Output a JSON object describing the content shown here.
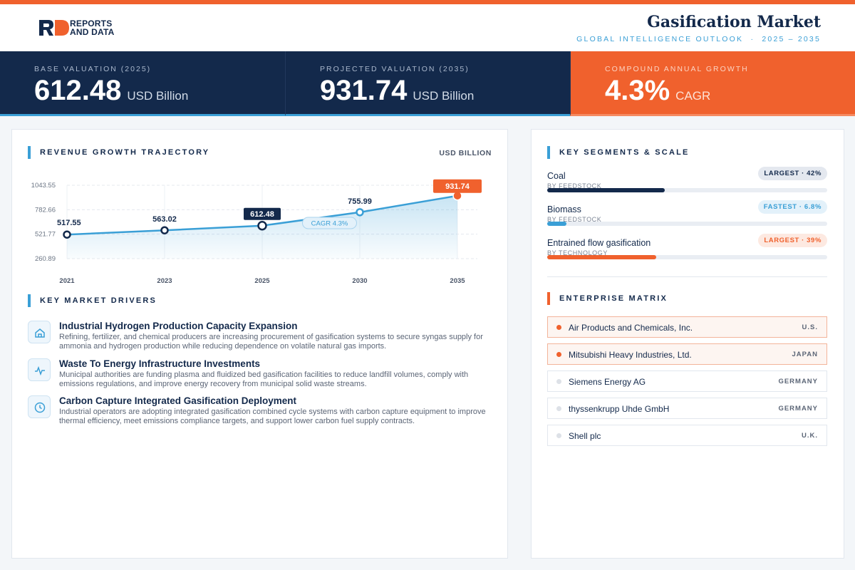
{
  "header": {
    "logo": [
      "REPORTS",
      "AND DATA"
    ],
    "title": "Gasification Market",
    "subtitle": "GLOBAL INTELLIGENCE OUTLOOK  ·  2025 – 2035"
  },
  "kpis": [
    {
      "label": "BASE VALUATION (2025)",
      "value": 612.48,
      "unit": "USD Billion"
    },
    {
      "label": "PROJECTED VALUATION (2035)",
      "value": 931.74,
      "unit": "USD Billion"
    },
    {
      "label": "COMPOUND ANNUAL GROWTH",
      "value": "4.3%",
      "unit": "CAGR"
    }
  ],
  "growth": {
    "title": "REVENUE GROWTH TRAJECTORY",
    "unit": "USD BILLION"
  },
  "chart_data": {
    "type": "line",
    "categories": [
      "2021",
      "2023",
      "2025",
      "2030",
      "2035"
    ],
    "values": [
      517.55,
      563.02,
      612.48,
      755.99,
      931.74
    ],
    "color": "#3a9fd6",
    "ylim": [
      260.89,
      1043.55
    ],
    "yticks": [
      260.89,
      521.77,
      782.66,
      1043.55
    ],
    "grid": true,
    "annotation": "CAGR 4.3%"
  },
  "drivers": {
    "title": "KEY MARKET DRIVERS",
    "items": [
      {
        "title": "Industrial Hydrogen Production Capacity Expansion",
        "text": "Refining, fertilizer, and chemical producers are increasing procurement of gasification systems to secure syngas supply for ammonia and hydrogen production while reducing dependence on volatile natural gas imports."
      },
      {
        "title": "Waste To Energy Infrastructure Investments",
        "text": "Municipal authorities are funding plasma and fluidized bed gasification facilities to reduce landfill volumes, comply with emissions regulations, and improve energy recovery from municipal solid waste streams."
      },
      {
        "title": "Carbon Capture Integrated Gasification Deployment",
        "text": "Industrial operators are adopting integrated gasification combined cycle systems with carbon capture equipment to improve thermal efficiency, meet emissions compliance targets, and support lower carbon fuel supply contracts."
      }
    ]
  },
  "segments": {
    "title": "KEY SEGMENTS & SCALE",
    "items": [
      {
        "name": "Coal",
        "by": "BY FEEDSTOCK",
        "badge": "LARGEST · 42%",
        "share": 42,
        "color": "#13294b"
      },
      {
        "name": "Biomass",
        "by": "BY FEEDSTOCK",
        "badge": "FASTEST · 6.8%",
        "share": 6.8,
        "color": "#3a9fd6"
      },
      {
        "name": "Entrained flow gasification",
        "by": "BY TECHNOLOGY",
        "badge": "LARGEST · 39%",
        "share": 39,
        "color": "#f0612d"
      }
    ]
  },
  "enterprise": {
    "title": "ENTERPRISE MATRIX",
    "rows": [
      {
        "name": "Air Products and Chemicals, Inc.",
        "country": "U.S.",
        "highlight": true
      },
      {
        "name": "Mitsubishi Heavy Industries, Ltd.",
        "country": "JAPAN",
        "highlight": true
      },
      {
        "name": "Siemens Energy AG",
        "country": "GERMANY",
        "highlight": false
      },
      {
        "name": "thyssenkrupp Uhde GmbH",
        "country": "GERMANY",
        "highlight": false
      },
      {
        "name": "Shell plc",
        "country": "U.K.",
        "highlight": false
      }
    ]
  }
}
